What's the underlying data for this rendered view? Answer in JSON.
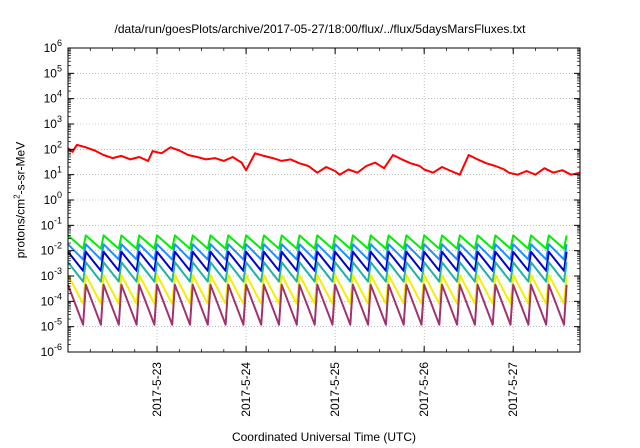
{
  "chart_data": {
    "type": "line",
    "title": "/data/run/goesPlots/archive/2017-05-27/18:00/flux/../flux/5daysMarsFluxes.txt",
    "xlabel": "Coordinated Universal Time (UTC)",
    "ylabel": {
      "prefix": "protons/cm",
      "sup": "2",
      "suffix": "-s-sr-MeV"
    },
    "yscale": "log",
    "ylim": [
      1e-06,
      1000000.0
    ],
    "xlim": [
      "2017-05-22 00:00",
      "2017-05-27 18:00"
    ],
    "grid": true,
    "y_ticks": [
      {
        "value": 1e-06,
        "base": "10",
        "exp": "-6"
      },
      {
        "value": 1e-05,
        "base": "10",
        "exp": "-5"
      },
      {
        "value": 0.0001,
        "base": "10",
        "exp": "-4"
      },
      {
        "value": 0.001,
        "base": "10",
        "exp": "-3"
      },
      {
        "value": 0.01,
        "base": "10",
        "exp": "-2"
      },
      {
        "value": 0.1,
        "base": "10",
        "exp": "-1"
      },
      {
        "value": 1.0,
        "base": "10",
        "exp": "0"
      },
      {
        "value": 10.0,
        "base": "10",
        "exp": "1"
      },
      {
        "value": 100.0,
        "base": "10",
        "exp": "2"
      },
      {
        "value": 1000.0,
        "base": "10",
        "exp": "3"
      },
      {
        "value": 10000.0,
        "base": "10",
        "exp": "4"
      },
      {
        "value": 100000.0,
        "base": "10",
        "exp": "5"
      },
      {
        "value": 1000000.0,
        "base": "10",
        "exp": "6"
      }
    ],
    "x_ticks": [
      {
        "value": "2017-05-23 00:00",
        "label": "2017-5-23"
      },
      {
        "value": "2017-05-24 00:00",
        "label": "2017-5-24"
      },
      {
        "value": "2017-05-25 00:00",
        "label": "2017-5-25"
      },
      {
        "value": "2017-05-26 00:00",
        "label": "2017-5-26"
      },
      {
        "value": "2017-05-27 00:00",
        "label": "2017-5-27"
      }
    ],
    "sawtooth_period_hours": 4.8,
    "series": [
      {
        "color": "#ff0000",
        "x": [
          "2017-05-22 00:00",
          "2017-05-22 01:12",
          "2017-05-22 02:24",
          "2017-05-22 04:48",
          "2017-05-22 07:12",
          "2017-05-22 09:36",
          "2017-05-22 12:00",
          "2017-05-22 14:24",
          "2017-05-22 16:48",
          "2017-05-22 19:12",
          "2017-05-22 21:36",
          "2017-05-22 22:48",
          "2017-05-23 01:12",
          "2017-05-23 03:36",
          "2017-05-23 06:00",
          "2017-05-23 08:24",
          "2017-05-23 10:48",
          "2017-05-23 13:12",
          "2017-05-23 15:36",
          "2017-05-23 18:00",
          "2017-05-23 20:24",
          "2017-05-23 22:48",
          "2017-05-24 00:00",
          "2017-05-24 02:24",
          "2017-05-24 04:48",
          "2017-05-24 07:12",
          "2017-05-24 09:36",
          "2017-05-24 12:00",
          "2017-05-24 14:24",
          "2017-05-24 16:48",
          "2017-05-24 19:12",
          "2017-05-24 21:36",
          "2017-05-25 00:00",
          "2017-05-25 01:12",
          "2017-05-25 03:36",
          "2017-05-25 06:00",
          "2017-05-25 08:24",
          "2017-05-25 10:48",
          "2017-05-25 13:12",
          "2017-05-25 15:36",
          "2017-05-25 18:00",
          "2017-05-25 20:24",
          "2017-05-25 22:48",
          "2017-05-26 00:00",
          "2017-05-26 02:24",
          "2017-05-26 04:48",
          "2017-05-26 07:12",
          "2017-05-26 09:36",
          "2017-05-26 12:00",
          "2017-05-26 14:24",
          "2017-05-26 16:48",
          "2017-05-26 19:12",
          "2017-05-26 21:36",
          "2017-05-26 22:48",
          "2017-05-27 01:12",
          "2017-05-27 03:36",
          "2017-05-27 06:00",
          "2017-05-27 08:24",
          "2017-05-27 10:48",
          "2017-05-27 13:12",
          "2017-05-27 15:36",
          "2017-05-27 18:00"
        ],
        "y": [
          110,
          80,
          150,
          120,
          90,
          60,
          45,
          55,
          40,
          50,
          35,
          85,
          70,
          120,
          90,
          60,
          50,
          40,
          45,
          35,
          50,
          30,
          15,
          70,
          55,
          45,
          35,
          40,
          28,
          22,
          12,
          20,
          14,
          10,
          16,
          12,
          22,
          30,
          18,
          60,
          40,
          28,
          22,
          16,
          12,
          20,
          14,
          10,
          60,
          40,
          28,
          22,
          16,
          12,
          10,
          14,
          10,
          18,
          12,
          15,
          10,
          12
        ]
      },
      {
        "color": "#00ee00",
        "sawtooth": {
          "start": "2017-05-22 00:00",
          "end": "2017-05-27 18:00",
          "high": 0.04,
          "low": 0.012
        }
      },
      {
        "color": "#1e90ff",
        "sawtooth": {
          "start": "2017-05-22 00:00",
          "end": "2017-05-27 18:00",
          "high": 0.018,
          "low": 0.0045
        }
      },
      {
        "color": "#0000cd",
        "sawtooth": {
          "start": "2017-05-22 00:00",
          "end": "2017-05-27 18:00",
          "high": 0.009,
          "low": 0.0016
        }
      },
      {
        "color": "#20b2aa",
        "sawtooth": {
          "start": "2017-05-22 00:00",
          "end": "2017-05-27 18:00",
          "high": 0.0035,
          "low": 0.0006
        }
      },
      {
        "color": "#f0f000",
        "sawtooth": {
          "start": "2017-05-22 00:00",
          "end": "2017-05-27 18:00",
          "high": 0.0011,
          "low": 8e-05
        }
      },
      {
        "color": "#a0326e",
        "sawtooth": {
          "start": "2017-05-22 00:00",
          "end": "2017-05-27 18:00",
          "high": 0.00045,
          "low": 1.2e-05
        }
      }
    ]
  }
}
